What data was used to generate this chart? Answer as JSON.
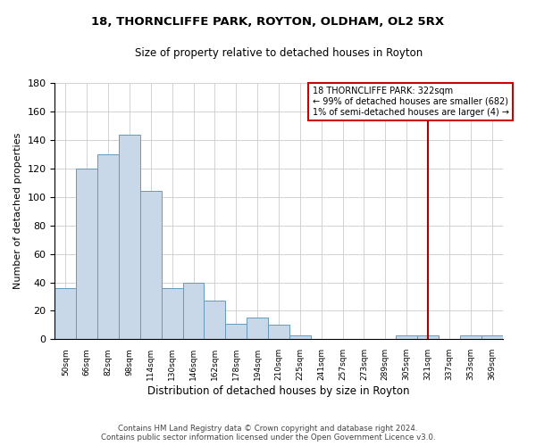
{
  "title": "18, THORNCLIFFE PARK, ROYTON, OLDHAM, OL2 5RX",
  "subtitle": "Size of property relative to detached houses in Royton",
  "xlabel": "Distribution of detached houses by size in Royton",
  "ylabel": "Number of detached properties",
  "bar_labels": [
    "50sqm",
    "66sqm",
    "82sqm",
    "98sqm",
    "114sqm",
    "130sqm",
    "146sqm",
    "162sqm",
    "178sqm",
    "194sqm",
    "210sqm",
    "225sqm",
    "241sqm",
    "257sqm",
    "273sqm",
    "289sqm",
    "305sqm",
    "321sqm",
    "337sqm",
    "353sqm",
    "369sqm"
  ],
  "bar_values": [
    36,
    120,
    130,
    144,
    104,
    36,
    40,
    27,
    11,
    15,
    10,
    3,
    0,
    0,
    0,
    0,
    3,
    3,
    0,
    3,
    3
  ],
  "bar_color": "#c8d8e8",
  "bar_edge_color": "#6699bb",
  "ylim": [
    0,
    180
  ],
  "yticks": [
    0,
    20,
    40,
    60,
    80,
    100,
    120,
    140,
    160,
    180
  ],
  "marker_label": "321sqm",
  "marker_color": "#aa0000",
  "annotation_title": "18 THORNCLIFFE PARK: 322sqm",
  "annotation_line1": "← 99% of detached houses are smaller (682)",
  "annotation_line2": "1% of semi-detached houses are larger (4) →",
  "annotation_box_color": "#ffffff",
  "annotation_border_color": "#cc0000",
  "grid_color": "#cccccc",
  "background_color": "#ffffff",
  "footer_line1": "Contains HM Land Registry data © Crown copyright and database right 2024.",
  "footer_line2": "Contains public sector information licensed under the Open Government Licence v3.0."
}
